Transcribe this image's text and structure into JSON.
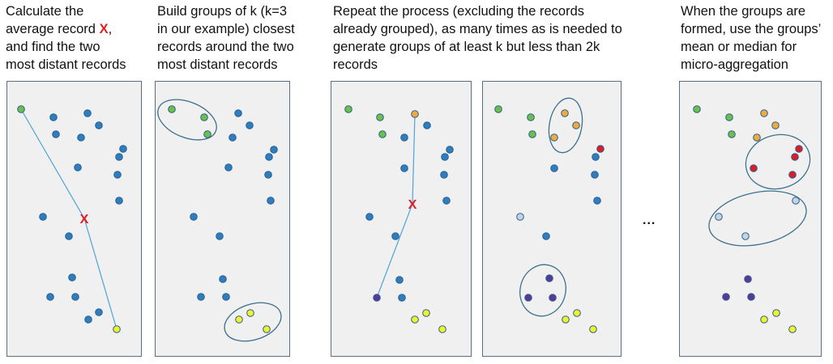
{
  "captions": [
    {
      "id": "step1",
      "lines": [
        "Calculate the",
        [
          "average record ",
          "X",
          ","
        ],
        "and find the two",
        "most distant records"
      ]
    },
    {
      "id": "step2",
      "lines": [
        "Build groups of k (k=3",
        "in our example) closest",
        "records around the two",
        "most distant records"
      ]
    },
    {
      "id": "step3",
      "lines": [
        "Repeat the process (excluding the records",
        "already grouped), as many times as is needed to",
        "generate groups of at least k but less than 2k",
        "records"
      ]
    },
    {
      "id": "step4",
      "lines": [
        "When the groups are",
        "formed, use the groups’",
        "mean or median for",
        "micro-aggregation"
      ]
    }
  ],
  "ellipsis": "...",
  "average_marker": "X",
  "colors": {
    "blue": "#2e7ebf",
    "green": "#6cc04a",
    "yellow": "#f2f22a",
    "orange": "#f2aa3c",
    "red": "#e01b23",
    "lightblue": "#c5d4e0",
    "purple": "#5b3896",
    "dot_outline": "#2a5f8f",
    "line": "#4ea3d8",
    "panel_fill": "#f0f0f0",
    "panel_border": "#5a6f86",
    "ellipse": "#3b6f8f"
  },
  "panels": [
    "panel-1",
    "panel-2",
    "panel-3",
    "panel-4",
    "panel-5"
  ]
}
